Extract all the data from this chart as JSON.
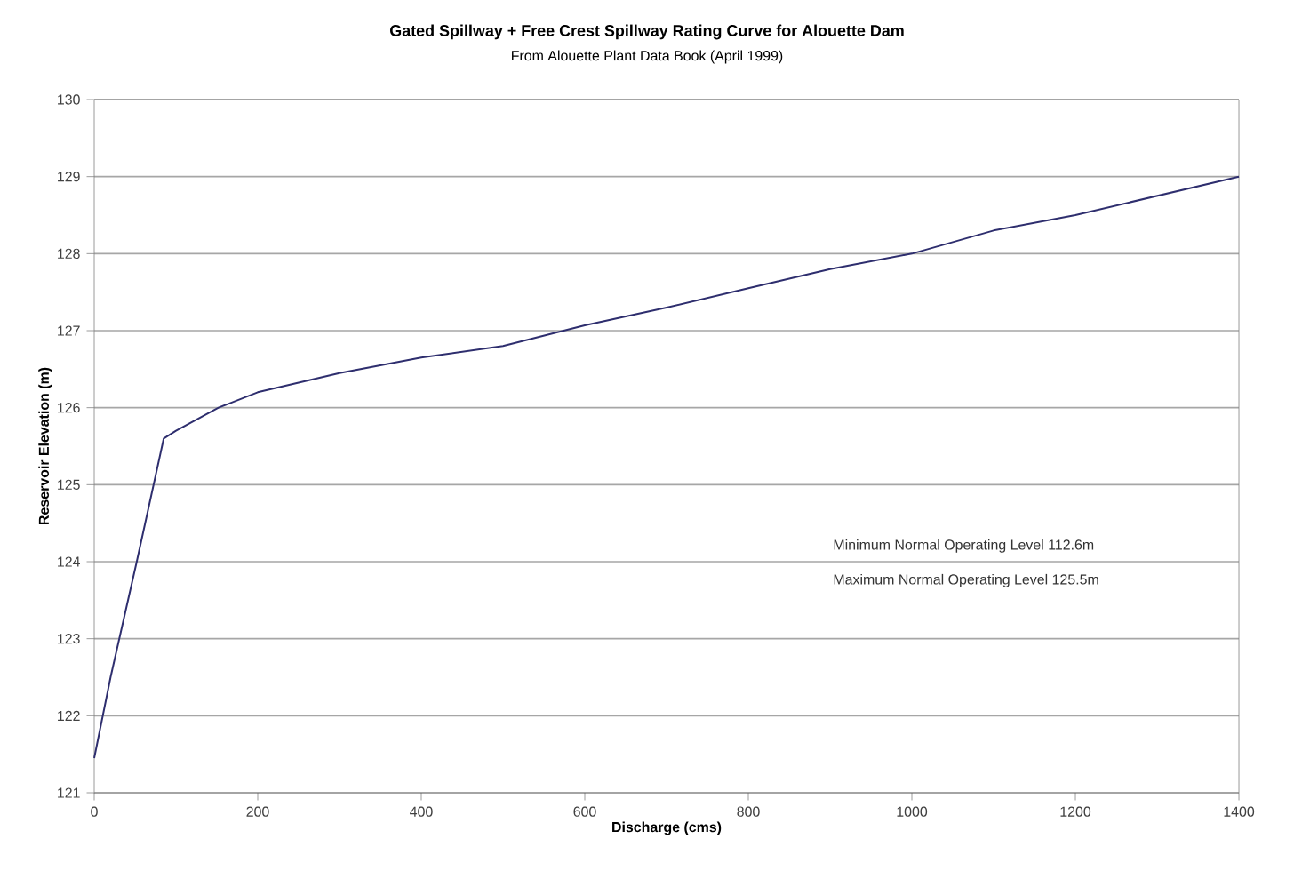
{
  "chart_data": {
    "type": "line",
    "title": "Gated Spillway + Free Crest Spillway Rating Curve for Alouette Dam",
    "subtitle": "From Alouette Plant Data Book (April 1999)",
    "xlabel": "Discharge (cms)",
    "ylabel": "Reservoir Elevation (m)",
    "annotations": [
      "Minimum Normal Operating Level 112.6m",
      "Maximum Normal Operating Level 125.5m"
    ],
    "x": [
      0,
      20,
      52,
      85,
      100,
      152,
      200,
      300,
      400,
      500,
      600,
      700,
      800,
      900,
      1000,
      1100,
      1200,
      1300,
      1400
    ],
    "series": [
      {
        "color": "#2e2e6e",
        "values": [
          121.45,
          122.5,
          124.0,
          125.6,
          125.7,
          126.0,
          126.2,
          126.45,
          126.65,
          126.8,
          127.07,
          127.3,
          127.55,
          127.8,
          128.0,
          128.3,
          128.5,
          128.75,
          129.0
        ]
      }
    ],
    "xlim": [
      0,
      1400
    ],
    "ylim": [
      121,
      130
    ],
    "xticks": [
      0,
      200,
      400,
      600,
      800,
      1000,
      1200,
      1400
    ],
    "yticks": [
      121,
      122,
      123,
      124,
      125,
      126,
      127,
      128,
      129,
      130
    ],
    "grid": "y",
    "marker": "none",
    "line_style": "solid"
  }
}
